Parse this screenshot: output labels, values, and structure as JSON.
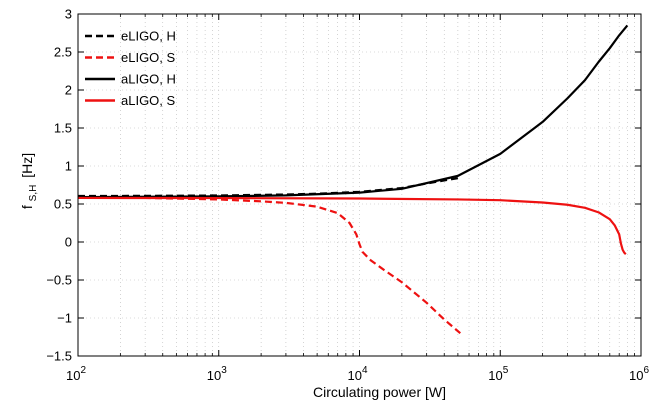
{
  "chart_data": {
    "type": "line",
    "title": "",
    "xlabel": "Circulating power [W]",
    "ylabel": {
      "base": "f",
      "sub": "S,H",
      "unit": "[Hz]"
    },
    "xscale": "log",
    "xlim": [
      100,
      1000000
    ],
    "ylim": [
      -1.5,
      3
    ],
    "grid": true,
    "legend": "top-left",
    "x_ticks": [
      {
        "value": 100,
        "base": "10",
        "exp": "2"
      },
      {
        "value": 1000,
        "base": "10",
        "exp": "3"
      },
      {
        "value": 10000,
        "base": "10",
        "exp": "4"
      },
      {
        "value": 100000,
        "base": "10",
        "exp": "5"
      },
      {
        "value": 1000000,
        "base": "10",
        "exp": "6"
      }
    ],
    "y_ticks": [
      {
        "value": -1.5,
        "label": "−1.5"
      },
      {
        "value": -1,
        "label": "−1"
      },
      {
        "value": -0.5,
        "label": "−0.5"
      },
      {
        "value": 0,
        "label": "0"
      },
      {
        "value": 0.5,
        "label": "0.5"
      },
      {
        "value": 1,
        "label": "1"
      },
      {
        "value": 1.5,
        "label": "1.5"
      },
      {
        "value": 2,
        "label": "2"
      },
      {
        "value": 2.5,
        "label": "2.5"
      },
      {
        "value": 3,
        "label": "3"
      }
    ],
    "series": [
      {
        "name": "eLIGO, H",
        "color": "#000000",
        "dash": true,
        "points": [
          [
            100,
            0.605
          ],
          [
            300,
            0.607
          ],
          [
            1000,
            0.612
          ],
          [
            3000,
            0.625
          ],
          [
            5000,
            0.635
          ],
          [
            10000,
            0.66
          ],
          [
            20000,
            0.71
          ],
          [
            30000,
            0.77
          ],
          [
            40000,
            0.81
          ],
          [
            50000,
            0.84
          ]
        ]
      },
      {
        "name": "eLIGO, S",
        "color": "#ee1111",
        "dash": true,
        "points": [
          [
            100,
            0.585
          ],
          [
            300,
            0.58
          ],
          [
            1000,
            0.56
          ],
          [
            2000,
            0.535
          ],
          [
            3000,
            0.515
          ],
          [
            5000,
            0.465
          ],
          [
            7000,
            0.38
          ],
          [
            8500,
            0.25
          ],
          [
            9500,
            0.1
          ],
          [
            10000,
            -0.03
          ],
          [
            10500,
            -0.13
          ],
          [
            12000,
            -0.24
          ],
          [
            15000,
            -0.37
          ],
          [
            20000,
            -0.53
          ],
          [
            30000,
            -0.8
          ],
          [
            40000,
            -1.02
          ],
          [
            52000,
            -1.2
          ]
        ]
      },
      {
        "name": "aLIGO, H",
        "color": "#000000",
        "dash": false,
        "points": [
          [
            100,
            0.59
          ],
          [
            1000,
            0.6
          ],
          [
            3000,
            0.613
          ],
          [
            10000,
            0.65
          ],
          [
            20000,
            0.7
          ],
          [
            50000,
            0.87
          ],
          [
            100000,
            1.16
          ],
          [
            200000,
            1.58
          ],
          [
            300000,
            1.89
          ],
          [
            400000,
            2.13
          ],
          [
            500000,
            2.37
          ],
          [
            600000,
            2.55
          ],
          [
            700000,
            2.72
          ],
          [
            800000,
            2.85
          ]
        ]
      },
      {
        "name": "aLIGO, S",
        "color": "#ee1111",
        "dash": false,
        "points": [
          [
            100,
            0.58
          ],
          [
            1000,
            0.578
          ],
          [
            10000,
            0.572
          ],
          [
            50000,
            0.56
          ],
          [
            100000,
            0.55
          ],
          [
            200000,
            0.52
          ],
          [
            300000,
            0.49
          ],
          [
            400000,
            0.45
          ],
          [
            500000,
            0.39
          ],
          [
            600000,
            0.3
          ],
          [
            650000,
            0.22
          ],
          [
            700000,
            0.1
          ],
          [
            720000,
            -0.02
          ],
          [
            740000,
            -0.1
          ],
          [
            760000,
            -0.14
          ],
          [
            780000,
            -0.16
          ]
        ]
      }
    ]
  }
}
